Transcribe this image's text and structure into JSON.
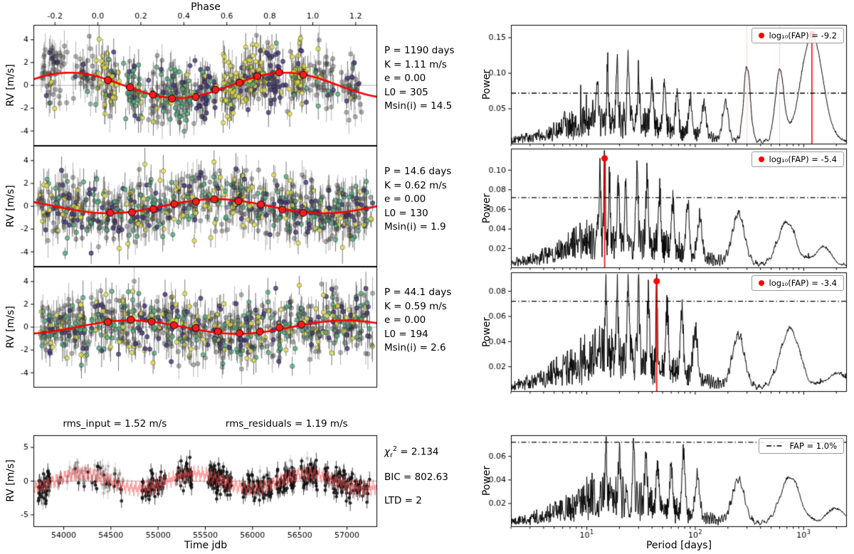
{
  "labels": {
    "phase": "Phase",
    "rv": "RV [m/s]",
    "power": "Power",
    "time_x": "Time jdb",
    "period_x": "Period [days]"
  },
  "colors": {
    "model": "#ff0000",
    "binned": "#ff1a1a",
    "red_line": "#ff0000",
    "yellow": "#e2e04c",
    "teal": "#56ab7f",
    "purple": "#45357a",
    "gray": "#3c3c3c"
  },
  "chart_data": [
    {
      "id": "rv-phase-1",
      "type": "scatter",
      "panel": "left-0",
      "ylabel": "RV [m/s]",
      "ylim": [
        -5.3,
        5.3
      ],
      "yticks": [
        -4,
        -2,
        0,
        2,
        4
      ],
      "xlim": [
        -0.3,
        1.3
      ],
      "xlabel_top": "Phase",
      "xticks_top": [
        -0.2,
        0.0,
        0.2,
        0.4,
        0.6,
        0.8,
        1.0,
        1.2
      ],
      "model": {
        "K_ms": 1.11,
        "phase_offset": 0.62
      },
      "fit": {
        "P_days": 1190,
        "K_ms": 1.11,
        "e": 0.0,
        "L0": 305,
        "Msini": 14.5
      },
      "params_text": "P = 1190 days\nK = 1.11 m/s\ne = 0.00\nL0 = 305\nMsin(i) = 14.5"
    },
    {
      "id": "rv-phase-2",
      "type": "scatter",
      "panel": "left-1",
      "ylabel": "RV [m/s]",
      "ylim": [
        -5.3,
        5.3
      ],
      "yticks": [
        -4,
        -2,
        0,
        2,
        4
      ],
      "xlim": [
        -0.3,
        1.3
      ],
      "model": {
        "K_ms": 0.62,
        "phase_offset": 0.3
      },
      "fit": {
        "P_days": 14.6,
        "K_ms": 0.62,
        "e": 0.0,
        "L0": 130,
        "Msini": 1.9
      },
      "params_text": "P = 14.6 days\nK = 0.62 m/s\ne = 0.00\nL0 = 130\nMsin(i) = 1.9"
    },
    {
      "id": "rv-phase-3",
      "type": "scatter",
      "panel": "left-2",
      "ylabel": "RV [m/s]",
      "ylim": [
        -5.3,
        5.3
      ],
      "yticks": [
        -4,
        -2,
        0,
        2,
        4
      ],
      "xlim": [
        -0.3,
        1.3
      ],
      "model": {
        "K_ms": 0.59,
        "phase_offset": -0.1
      },
      "fit": {
        "P_days": 44.1,
        "K_ms": 0.59,
        "e": 0.0,
        "L0": 194,
        "Msini": 2.6
      },
      "params_text": "P = 44.1 days\nK = 0.59 m/s\ne = 0.00\nL0 = 194\nMsin(i) = 2.6"
    },
    {
      "id": "rv-time",
      "type": "scatter",
      "panel": "left-3",
      "title_left": "rms_input = 1.52 m/s",
      "title_right": "rms_residuals = 1.19 m/s",
      "xlabel": "Time jdb",
      "ylabel": "RV [m/s]",
      "xlim": [
        53680,
        57320
      ],
      "xticks": [
        54000,
        54500,
        55000,
        55500,
        56000,
        56500,
        57000
      ],
      "ylim": [
        -6.8,
        6.8
      ],
      "yticks": [
        -5,
        0,
        5
      ],
      "model_components": [
        {
          "P_days": 1190,
          "K_ms": 1.11
        },
        {
          "P_days": 14.6,
          "K_ms": 0.62
        },
        {
          "P_days": 44.1,
          "K_ms": 0.59
        }
      ],
      "stats": {
        "chi": "χ",
        "chi_sub": "r",
        "chi_sup": "2",
        "chi_val": " = 2.134",
        "bic": "BIC = 802.63",
        "ltd": "LTD = 2"
      }
    },
    {
      "id": "periodogram-1",
      "type": "line",
      "panel": "right-0",
      "ylabel": "Power",
      "xscale": "log",
      "xlim": [
        2,
        2500
      ],
      "ylim": [
        0,
        0.168
      ],
      "yticks": [
        0.05,
        0.1,
        0.15
      ],
      "fap_threshold": 0.072,
      "legend": "log₁₀(FAP) = -9.2",
      "peak_marker": {
        "period_days": 1190,
        "power": 0.155
      },
      "faint_lines": [
        300,
        600
      ],
      "noise_scale": 1.3,
      "peaks": [
        [
          1190,
          0.15,
          0.1
        ],
        [
          600,
          0.1,
          0.04
        ],
        [
          300,
          0.105,
          0.03
        ],
        [
          190,
          0.052,
          0.025
        ],
        [
          120,
          0.046,
          0.02
        ],
        [
          90,
          0.05,
          0.015
        ],
        [
          68,
          0.054,
          0.013
        ],
        [
          52,
          0.058,
          0.012
        ],
        [
          40,
          0.06,
          0.011
        ],
        [
          30,
          0.064,
          0.01
        ],
        [
          24,
          0.074,
          0.009
        ],
        [
          19,
          0.088,
          0.008
        ],
        [
          15.5,
          0.074,
          0.007
        ],
        [
          12.5,
          0.058,
          0.007
        ]
      ]
    },
    {
      "id": "periodogram-2",
      "type": "line",
      "panel": "right-1",
      "ylabel": "Power",
      "xscale": "log",
      "xlim": [
        2,
        2500
      ],
      "ylim": [
        0,
        0.122
      ],
      "yticks": [
        0.02,
        0.04,
        0.06,
        0.08,
        0.1
      ],
      "fap_threshold": 0.072,
      "legend": "log₁₀(FAP) = -5.4",
      "peak_marker": {
        "period_days": 14.6,
        "power": 0.112
      },
      "faint_lines": [],
      "noise_scale": 1.2,
      "peaks": [
        [
          14.6,
          0.105,
          0.006
        ],
        [
          13.2,
          0.083,
          0.006
        ],
        [
          16.2,
          0.068,
          0.006
        ],
        [
          19.5,
          0.066,
          0.008
        ],
        [
          23,
          0.058,
          0.008
        ],
        [
          29,
          0.076,
          0.009
        ],
        [
          36,
          0.068,
          0.01
        ],
        [
          47,
          0.054,
          0.012
        ],
        [
          62,
          0.05,
          0.013
        ],
        [
          85,
          0.054,
          0.015
        ],
        [
          110,
          0.04,
          0.02
        ],
        [
          250,
          0.05,
          0.055
        ],
        [
          700,
          0.044,
          0.08
        ],
        [
          1500,
          0.018,
          0.08
        ]
      ]
    },
    {
      "id": "periodogram-3",
      "type": "line",
      "panel": "right-2",
      "ylabel": "Power",
      "xscale": "log",
      "xlim": [
        2,
        2500
      ],
      "ylim": [
        0,
        0.095
      ],
      "yticks": [
        0.02,
        0.04,
        0.06,
        0.08
      ],
      "fap_threshold": 0.072,
      "legend": "log₁₀(FAP) = -3.4",
      "peak_marker": {
        "period_days": 44.1,
        "power": 0.088
      },
      "faint_lines": [],
      "noise_scale": 1.05,
      "peaks": [
        [
          44.1,
          0.083,
          0.006
        ],
        [
          15,
          0.066,
          0.007
        ],
        [
          19,
          0.058,
          0.008
        ],
        [
          24,
          0.054,
          0.009
        ],
        [
          30,
          0.058,
          0.009
        ],
        [
          37,
          0.054,
          0.01
        ],
        [
          55,
          0.048,
          0.012
        ],
        [
          75,
          0.053,
          0.014
        ],
        [
          100,
          0.038,
          0.02
        ],
        [
          250,
          0.04,
          0.055
        ],
        [
          750,
          0.047,
          0.09
        ],
        [
          2000,
          0.012,
          0.1
        ]
      ]
    },
    {
      "id": "periodogram-4",
      "type": "line",
      "panel": "right-3",
      "ylabel": "Power",
      "xlabel": "Period [days]",
      "xscale": "log",
      "xlim": [
        2,
        2500
      ],
      "ylim": [
        0,
        0.078
      ],
      "yticks": [
        0.02,
        0.04,
        0.06
      ],
      "fap_threshold": 0.072,
      "legend": "FAP = 1.0%",
      "faint_lines": [],
      "noise_scale": 0.95,
      "peaks": [
        [
          15,
          0.048,
          0.007
        ],
        [
          20,
          0.044,
          0.008
        ],
        [
          27,
          0.044,
          0.009
        ],
        [
          35,
          0.046,
          0.01
        ],
        [
          45,
          0.04,
          0.011
        ],
        [
          60,
          0.038,
          0.012
        ],
        [
          78,
          0.053,
          0.014
        ],
        [
          105,
          0.034,
          0.02
        ],
        [
          250,
          0.036,
          0.055
        ],
        [
          750,
          0.04,
          0.09
        ],
        [
          2000,
          0.013,
          0.1
        ]
      ]
    }
  ]
}
